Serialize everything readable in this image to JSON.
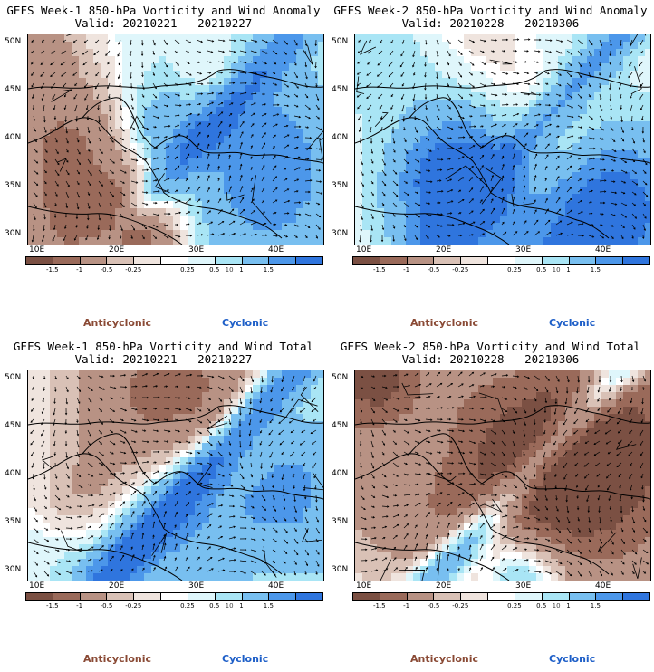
{
  "panels": [
    {
      "title": "GEFS Week-1 850-hPa Vorticity and Wind Anomaly",
      "valid": "Valid: 20210221 - 20210227"
    },
    {
      "title": "GEFS Week-2 850-hPa Vorticity and Wind Anomaly",
      "valid": "Valid: 20210228 - 20210306"
    },
    {
      "title": "GEFS Week-1 850-hPa Vorticity and Wind Total",
      "valid": "Valid: 20210221 - 20210227"
    },
    {
      "title": "GEFS Week-2 850-hPa Vorticity and Wind Total",
      "valid": "Valid: 20210228 - 20210306"
    }
  ],
  "lat_labels": [
    "50N",
    "45N",
    "40N",
    "35N",
    "30N"
  ],
  "lon_labels": [
    "10E",
    "20E",
    "30E",
    "40E"
  ],
  "colorbar": {
    "ticks": [
      "-1.5",
      "-1",
      "-0.5",
      "-0.25",
      "0.25",
      "0.5",
      "1",
      "1.5"
    ],
    "scale_label": "10",
    "colors": [
      "#7b5043",
      "#9a6a5a",
      "#b89284",
      "#d9c1b6",
      "#efe4de",
      "#ffffff",
      "#dff6fb",
      "#a9e5f5",
      "#78bff0",
      "#4c97ea",
      "#2f75de"
    ]
  },
  "legend": {
    "anticyclonic": "Anticyclonic",
    "cyclonic": "Cyclonic"
  },
  "colors": {
    "brown": "#8a4a35",
    "blue": "#1e5fc8"
  }
}
